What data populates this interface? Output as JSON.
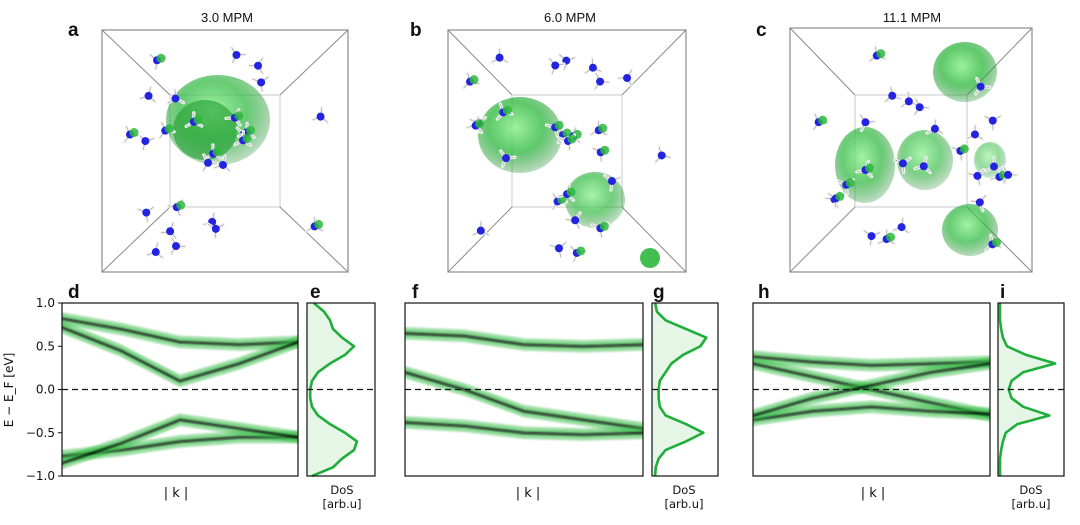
{
  "figure": {
    "top_panels": [
      {
        "letter": "a",
        "title": "3.0 MPM"
      },
      {
        "letter": "b",
        "title": "6.0 MPM"
      },
      {
        "letter": "c",
        "title": "11.1 MPM"
      }
    ],
    "band_panels": [
      {
        "letter": "d",
        "xlabel": "| k |"
      },
      {
        "letter": "f",
        "xlabel": "| k |"
      },
      {
        "letter": "h",
        "xlabel": "| k |"
      }
    ],
    "dos_panels": [
      {
        "letter": "e",
        "xlabel_line1": "DoS",
        "xlabel_line2": "[arb.u]"
      },
      {
        "letter": "g",
        "xlabel_line1": "DoS",
        "xlabel_line2": "[arb.u]"
      },
      {
        "letter": "i",
        "xlabel_line1": "DoS",
        "xlabel_line2": "[arb.u]"
      }
    ],
    "ylabel": "E − E_F [eV]",
    "colors": {
      "isosurface": "#2db83d",
      "nitrogen": "#2424e0",
      "hydrogen": "#f2f2f2",
      "band_dark": "#062b0c",
      "dos_line": "#1fae3a"
    }
  },
  "chart_data": [
    {
      "panel": "d",
      "type": "line",
      "x_label": "| k |",
      "y_label": "E − E_F [eV]",
      "ylim": [
        -1.0,
        1.0
      ],
      "yticks": [
        1.0,
        0.5,
        0.0,
        -0.5,
        -1.0
      ],
      "ytick_labels": [
        "1.0",
        "0.5",
        "0.0",
        "−0.5",
        "−1.0"
      ],
      "fermi_level": 0.0,
      "x": [
        0,
        0.25,
        0.5,
        0.75,
        1.0
      ],
      "series": [
        {
          "values": [
            0.82,
            0.7,
            0.55,
            0.52,
            0.55
          ]
        },
        {
          "values": [
            0.72,
            0.45,
            0.1,
            0.3,
            0.55
          ]
        },
        {
          "values": [
            -0.77,
            -0.7,
            -0.6,
            -0.55,
            -0.55
          ]
        },
        {
          "values": [
            -0.85,
            -0.62,
            -0.35,
            -0.45,
            -0.55
          ]
        }
      ]
    },
    {
      "panel": "e",
      "type": "line",
      "x_label": "DoS [arb.u]",
      "ylim": [
        -1.0,
        1.0
      ],
      "fermi_level": 0.0,
      "dos_energy": [
        -1.0,
        -0.9,
        -0.8,
        -0.7,
        -0.6,
        -0.5,
        -0.4,
        -0.3,
        -0.2,
        -0.1,
        0.0,
        0.1,
        0.2,
        0.3,
        0.4,
        0.5,
        0.6,
        0.7,
        0.8,
        0.9,
        1.0
      ],
      "dos_values": [
        0.05,
        0.4,
        0.55,
        0.75,
        0.8,
        0.6,
        0.35,
        0.15,
        0.05,
        0.02,
        0.02,
        0.05,
        0.15,
        0.35,
        0.6,
        0.75,
        0.55,
        0.4,
        0.35,
        0.25,
        0.08
      ]
    },
    {
      "panel": "f",
      "type": "line",
      "x_label": "| k |",
      "ylim": [
        -1.0,
        1.0
      ],
      "fermi_level": 0.0,
      "x": [
        0,
        0.25,
        0.5,
        0.75,
        1.0
      ],
      "series": [
        {
          "values": [
            0.65,
            0.62,
            0.52,
            0.5,
            0.52
          ]
        },
        {
          "values": [
            0.2,
            0.0,
            -0.25,
            -0.35,
            -0.45
          ]
        },
        {
          "values": [
            -0.38,
            -0.42,
            -0.5,
            -0.52,
            -0.5
          ]
        }
      ]
    },
    {
      "panel": "g",
      "type": "line",
      "x_label": "DoS [arb.u]",
      "ylim": [
        -1.0,
        1.0
      ],
      "fermi_level": 0.0,
      "dos_energy": [
        -1.0,
        -0.9,
        -0.8,
        -0.7,
        -0.6,
        -0.5,
        -0.4,
        -0.3,
        -0.2,
        -0.1,
        0.0,
        0.1,
        0.2,
        0.3,
        0.4,
        0.5,
        0.6,
        0.7,
        0.8,
        0.9,
        1.0
      ],
      "dos_values": [
        0.02,
        0.03,
        0.08,
        0.2,
        0.55,
        0.85,
        0.55,
        0.2,
        0.1,
        0.08,
        0.08,
        0.1,
        0.2,
        0.3,
        0.5,
        0.8,
        0.9,
        0.55,
        0.2,
        0.05,
        0.02
      ]
    },
    {
      "panel": "h",
      "type": "line",
      "x_label": "| k |",
      "ylim": [
        -1.0,
        1.0
      ],
      "fermi_level": 0.0,
      "x": [
        0,
        0.25,
        0.5,
        0.75,
        1.0
      ],
      "series": [
        {
          "values": [
            0.38,
            0.32,
            0.28,
            0.3,
            0.32
          ]
        },
        {
          "values": [
            0.3,
            0.15,
            0.0,
            -0.15,
            -0.3
          ]
        },
        {
          "values": [
            -0.35,
            -0.25,
            -0.2,
            -0.25,
            -0.28
          ]
        },
        {
          "values": [
            -0.3,
            -0.1,
            0.05,
            0.2,
            0.3
          ]
        }
      ]
    },
    {
      "panel": "i",
      "type": "line",
      "x_label": "DoS [arb.u]",
      "ylim": [
        -1.0,
        1.0
      ],
      "fermi_level": 0.0,
      "dos_energy": [
        -1.0,
        -0.9,
        -0.8,
        -0.7,
        -0.6,
        -0.5,
        -0.4,
        -0.3,
        -0.2,
        -0.1,
        0.0,
        0.1,
        0.2,
        0.3,
        0.4,
        0.5,
        0.6,
        0.7,
        0.8,
        0.9,
        1.0
      ],
      "dos_values": [
        0.0,
        0.0,
        0.0,
        0.02,
        0.05,
        0.1,
        0.3,
        0.85,
        0.4,
        0.2,
        0.15,
        0.2,
        0.4,
        0.95,
        0.45,
        0.12,
        0.05,
        0.02,
        0.0,
        0.0,
        0.0
      ]
    }
  ]
}
